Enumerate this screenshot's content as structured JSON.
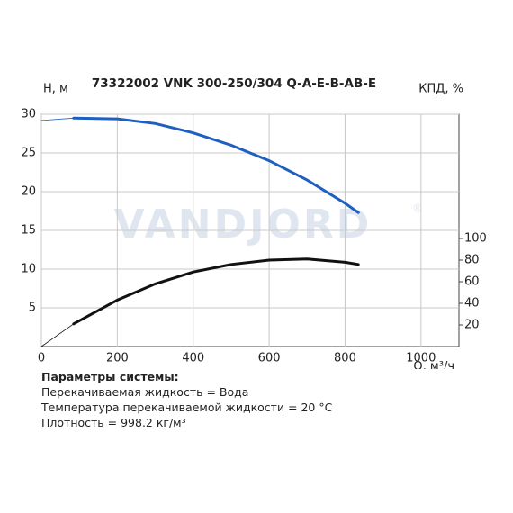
{
  "chart_data": {
    "type": "line",
    "title": "73322002 VNK 300-250/304 Q-A-E-B-AB-E",
    "watermark": "VANDJORD",
    "watermark_mark": "®",
    "y_label": "H, м",
    "y2_label": "КПД, %",
    "x_label": "Q, м³/ч",
    "x": [
      0,
      85,
      200,
      300,
      400,
      500,
      600,
      700,
      800,
      835
    ],
    "series": [
      {
        "name": "H",
        "color": "#1f5fc0",
        "values": [
          29.2,
          29.5,
          29.4,
          28.8,
          27.6,
          26,
          24,
          21.5,
          18.5,
          17.3
        ]
      },
      {
        "name": "КПД",
        "color": "#111111",
        "axis": "y2",
        "values": [
          0,
          21,
          43,
          58,
          69,
          76,
          80,
          81,
          78,
          76
        ]
      }
    ],
    "xlim": [
      0,
      1100
    ],
    "xticks": [
      0,
      200,
      400,
      600,
      800,
      1000
    ],
    "ylim": [
      0,
      30
    ],
    "yticks": [
      5,
      10,
      15,
      20,
      25,
      30
    ],
    "y2lim": [
      0,
      215
    ],
    "y2ticks": [
      20,
      40,
      60,
      80,
      100
    ],
    "grid": true
  },
  "system": {
    "heading": "Параметры системы:",
    "lines": [
      "Перекачиваемая жидкость = Вода",
      "Температура перекачиваемой жидкости = 20 °C",
      "Плотность = 998.2 кг/м³"
    ]
  }
}
